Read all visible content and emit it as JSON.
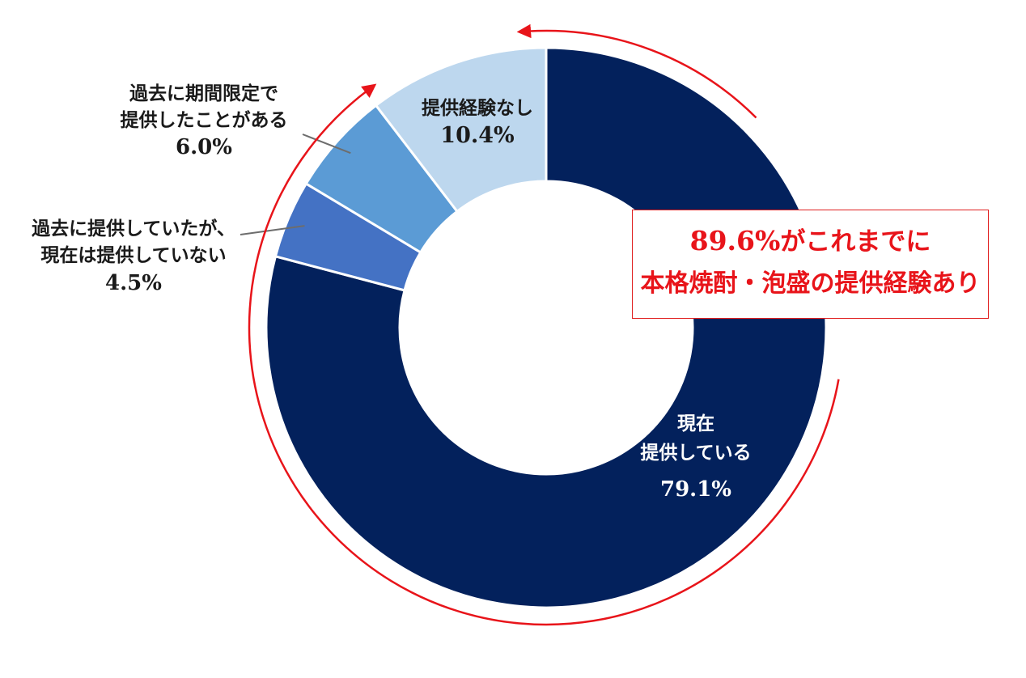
{
  "chart_data": {
    "type": "donut",
    "categories": [
      "現在提供している",
      "過去に提供していたが、現在は提供していない",
      "過去に期間限定で提供したことがある",
      "提供経験なし"
    ],
    "values": [
      79.1,
      4.5,
      6.0,
      10.4
    ],
    "unit": "%",
    "colors": [
      "#03215c",
      "#4472c4",
      "#5b9bd5",
      "#bdd7ee"
    ],
    "labels": [
      {
        "lines": [
          "現在",
          "提供している"
        ],
        "value": "79.1%",
        "color": "#ffffff"
      },
      {
        "lines": [
          "過去に提供していたが、",
          "現在は提供していない"
        ],
        "value": "4.5%",
        "color": "#1a1a1a"
      },
      {
        "lines": [
          "過去に期間限定で",
          "提供したことがある"
        ],
        "value": "6.0%",
        "color": "#1a1a1a"
      },
      {
        "lines": [
          "提供経験なし"
        ],
        "value": "10.4%",
        "color": "#1a1a1a"
      }
    ],
    "callout": {
      "percent": "89.6%",
      "line1_rest": "がこれまでに",
      "line2": "本格焼酎・泡盛の提供経験あり",
      "color": "#e8141a"
    }
  }
}
